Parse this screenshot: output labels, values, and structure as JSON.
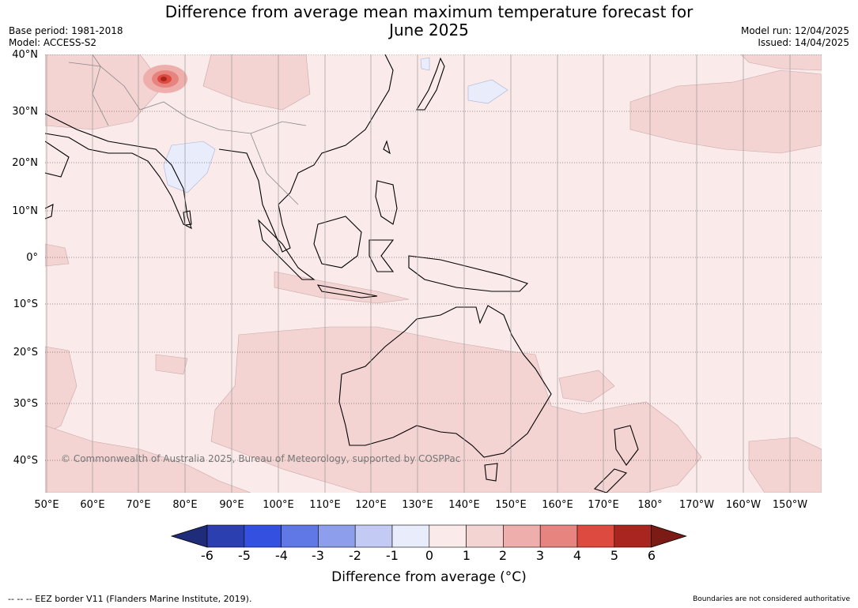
{
  "title_line1": "Difference from average mean maximum temperature forecast for",
  "title_line2": "June 2025",
  "base_period": "Base period: 1981-2018",
  "model": "Model: ACCESS-S2",
  "model_run": "Model run: 12/04/2025",
  "issued": "Issued: 14/04/2025",
  "copyright": "© Commonwealth of Australia 2025, Bureau of Meteorology, supported by COSPPac",
  "lat_labels": [
    "40°N",
    "30°N",
    "20°N",
    "10°N",
    "0°",
    "10°S",
    "20°S",
    "30°S",
    "40°S"
  ],
  "lon_labels": [
    "50°E",
    "60°E",
    "70°E",
    "80°E",
    "90°E",
    "100°E",
    "110°E",
    "120°E",
    "130°E",
    "140°E",
    "150°E",
    "160°E",
    "170°E",
    "180°",
    "170°W",
    "160°W",
    "150°W"
  ],
  "colorbar": {
    "ticks": [
      "-6",
      "-5",
      "-4",
      "-3",
      "-2",
      "-1",
      "0",
      "1",
      "2",
      "3",
      "4",
      "5",
      "6"
    ],
    "colors": [
      "#1e2c7a",
      "#2b3fb0",
      "#3350e0",
      "#5f78e6",
      "#8c9eec",
      "#c3cbf5",
      "#e8ecfb",
      "#fbeaea",
      "#f4d3d3",
      "#eeaeac",
      "#e8847f",
      "#dc4a40",
      "#a8261f",
      "#7c1a16"
    ],
    "label": "Difference from average ($^\\circ$C)"
  },
  "cbar_label_text": "Difference from average (°C)",
  "footer_left": "--  --  -- EEZ border V11 (Flanders Marine Institute, 2019).",
  "footer_right": "Boundaries are not considered authoritative"
}
